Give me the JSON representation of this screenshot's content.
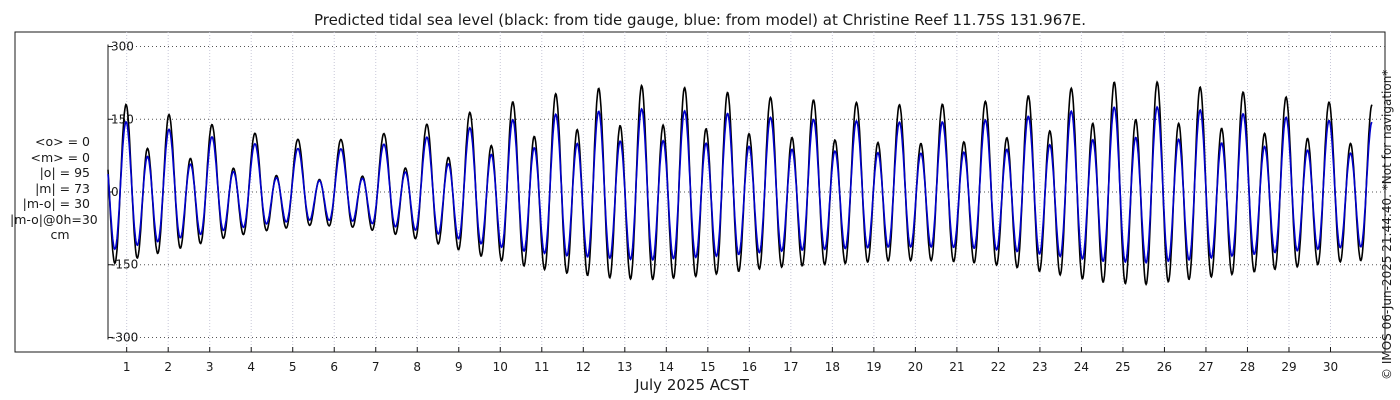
{
  "chart_data": {
    "type": "line",
    "title": "Predicted tidal sea level (black: from tide gauge, blue: from model) at Christine Reef 11.75S 131.967E.",
    "xlabel": "July 2025 ACST",
    "ylabel": "",
    "ylim": [
      -330,
      330
    ],
    "yticks": [
      -300,
      -150,
      0,
      150,
      300
    ],
    "xlim_days": [
      0.55,
      31.0
    ],
    "xticks": [
      "1",
      "2",
      "3",
      "4",
      "5",
      "6",
      "7",
      "8",
      "9",
      "10",
      "11",
      "12",
      "13",
      "14",
      "15",
      "16",
      "17",
      "18",
      "19",
      "20",
      "21",
      "22",
      "23",
      "24",
      "25",
      "26",
      "27",
      "28",
      "29",
      "30"
    ],
    "grid": true,
    "series": [
      {
        "color": "#000000",
        "tide_envelope": {
          "semidiurnal_amplitude": [
            150,
            130,
            110,
            90,
            75,
            65,
            70,
            85,
            105,
            130,
            150,
            165,
            175,
            180,
            175,
            165,
            155,
            150,
            145,
            140,
            140,
            145,
            155,
            170,
            185,
            190,
            180,
            170,
            160,
            150,
            140
          ],
          "diurnal_amplitude": 40,
          "offset": 0
        }
      },
      {
        "color": "#0000cc",
        "tide_envelope": {
          "semidiurnal_amplitude": [
            120,
            105,
            90,
            75,
            62,
            55,
            58,
            70,
            85,
            105,
            120,
            130,
            135,
            140,
            135,
            130,
            122,
            118,
            115,
            112,
            112,
            115,
            122,
            132,
            142,
            145,
            140,
            132,
            125,
            118,
            112
          ],
          "diurnal_amplitude": 32,
          "offset": 0
        }
      }
    ]
  },
  "stats": {
    "lines": [
      "<o> = 0",
      "<m> = 0",
      "|o| = 95",
      "|m| = 73",
      "|m-o| = 30",
      "|m-o|@0h=30"
    ],
    "unit": "cm"
  },
  "credit": "© IMOS 06-Jun-2025 21:44:40.  *Not for navigation*"
}
